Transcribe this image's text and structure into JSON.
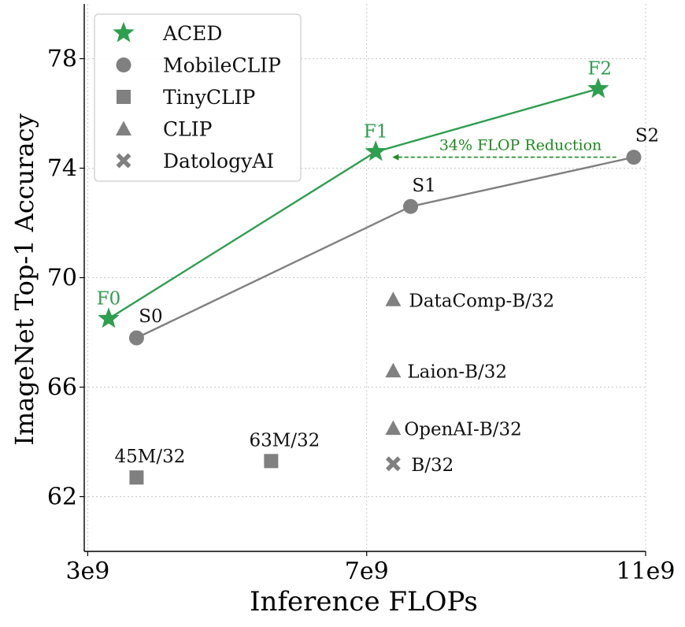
{
  "chart_data": {
    "type": "scatter",
    "title": "",
    "xlabel": "Inference FLOPs",
    "ylabel": "ImageNet Top-1 Accuracy",
    "xlim": [
      2950000000.0,
      11000000000.0
    ],
    "ylim": [
      60.0,
      80.0
    ],
    "xticks": [
      3000000000.0,
      7000000000.0,
      11000000000.0
    ],
    "xtick_labels": [
      "3e9",
      "7e9",
      "11e9"
    ],
    "yticks": [
      62,
      66,
      70,
      74,
      78
    ],
    "ytick_labels": [
      "62",
      "66",
      "70",
      "74",
      "78"
    ],
    "grid": true,
    "legend_position": "top-left",
    "colors": {
      "aced": "#2e9e4f",
      "gray": "#808080",
      "annotation": "#1f8a1f"
    },
    "legend": [
      {
        "label": "ACED",
        "marker": "star"
      },
      {
        "label": "MobileCLIP",
        "marker": "circle"
      },
      {
        "label": "TinyCLIP",
        "marker": "square"
      },
      {
        "label": "CLIP",
        "marker": "triangle"
      },
      {
        "label": "DatologyAI",
        "marker": "x"
      }
    ],
    "series": [
      {
        "name": "ACED",
        "marker": "star",
        "color": "#2e9e4f",
        "connected": true,
        "points": [
          {
            "label": "F0",
            "x": 3300000000.0,
            "y": 68.5
          },
          {
            "label": "F1",
            "x": 7130000000.0,
            "y": 74.6
          },
          {
            "label": "F2",
            "x": 10320000000.0,
            "y": 76.9
          }
        ]
      },
      {
        "name": "MobileCLIP",
        "marker": "circle",
        "color": "#808080",
        "connected": true,
        "points": [
          {
            "label": "S0",
            "x": 3700000000.0,
            "y": 67.8
          },
          {
            "label": "S1",
            "x": 7630000000.0,
            "y": 72.6
          },
          {
            "label": "S2",
            "x": 10830000000.0,
            "y": 74.4
          }
        ]
      },
      {
        "name": "TinyCLIP",
        "marker": "square",
        "color": "#808080",
        "connected": false,
        "points": [
          {
            "label": "45M/32",
            "x": 3700000000.0,
            "y": 62.7
          },
          {
            "label": "63M/32",
            "x": 5630000000.0,
            "y": 63.3
          }
        ]
      },
      {
        "name": "CLIP",
        "marker": "triangle",
        "color": "#808080",
        "connected": false,
        "points": [
          {
            "label": "DataComp-B/32",
            "x": 7380000000.0,
            "y": 69.2
          },
          {
            "label": "Laion-B/32",
            "x": 7380000000.0,
            "y": 66.6
          },
          {
            "label": "OpenAI-B/32",
            "x": 7380000000.0,
            "y": 64.5
          }
        ]
      },
      {
        "name": "DatologyAI",
        "marker": "x",
        "color": "#808080",
        "connected": false,
        "points": [
          {
            "label": "B/32",
            "x": 7380000000.0,
            "y": 63.2
          }
        ]
      }
    ],
    "annotations": [
      {
        "text": "34% FLOP Reduction",
        "arrow_from": {
          "x": 10580000000.0,
          "y": 74.4
        },
        "arrow_to": {
          "x": 7380000000.0,
          "y": 74.4
        }
      }
    ]
  }
}
